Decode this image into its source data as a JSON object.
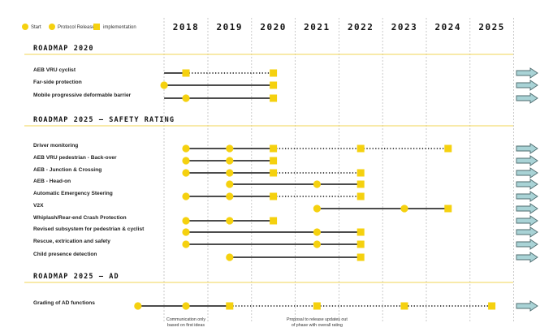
{
  "legend": {
    "start": "Start",
    "protocol_release": "Protocol Release",
    "implementation": "implementation"
  },
  "years": [
    "2018",
    "2019",
    "2020",
    "2021",
    "2022",
    "2023",
    "2024",
    "2025"
  ],
  "colors": {
    "marker": "#f5d10f",
    "section_rule": "#f2d455",
    "arrow_fill": "#a9d3d6",
    "arrow_stroke": "#4e6b6e",
    "grid": "#bdbdbd",
    "line": "#111111"
  },
  "sections": [
    {
      "title": "ROADMAP 2020",
      "rows": [
        {
          "label": "AEB VRU cyclist",
          "solid": [
            [
              2017.5,
              2018.0
            ]
          ],
          "dotted": [
            [
              2018.0,
              2020.0
            ]
          ],
          "circles": [],
          "squares": [
            2018.0,
            2020.0
          ]
        },
        {
          "label": "Far-side protection",
          "solid": [
            [
              2017.5,
              2020.0
            ]
          ],
          "dotted": [],
          "circles": [
            2017.5
          ],
          "squares": [
            2020.0
          ]
        },
        {
          "label": "Mobile progressive deformable barrier",
          "solid": [
            [
              2017.5,
              2020.0
            ]
          ],
          "dotted": [],
          "circles": [
            2018.0
          ],
          "squares": [
            2020.0
          ]
        }
      ]
    },
    {
      "title": "ROADMAP 2025 — SAFETY RATING",
      "rows": [
        {
          "label": "Driver monitoring",
          "solid": [
            [
              2018.0,
              2020.0
            ]
          ],
          "dotted": [
            [
              2020.0,
              2022.0
            ],
            [
              2022.0,
              2024.0
            ]
          ],
          "circles": [
            2018.0,
            2019.0
          ],
          "squares": [
            2020.0,
            2022.0,
            2024.0
          ]
        },
        {
          "label": "AEB VRU pedestrian - Back-over",
          "solid": [
            [
              2018.0,
              2020.0
            ]
          ],
          "dotted": [],
          "circles": [
            2018.0,
            2019.0
          ],
          "squares": [
            2020.0
          ]
        },
        {
          "label": "AEB - Junction & Crossing",
          "solid": [
            [
              2018.0,
              2020.0
            ]
          ],
          "dotted": [
            [
              2020.0,
              2022.0
            ]
          ],
          "circles": [
            2018.0,
            2019.0
          ],
          "squares": [
            2020.0,
            2022.0
          ]
        },
        {
          "label": "AEB - Head-on",
          "solid": [
            [
              2019.0,
              2022.0
            ]
          ],
          "dotted": [],
          "circles": [
            2019.0,
            2021.0
          ],
          "squares": [
            2022.0
          ]
        },
        {
          "label": "Automatic Emergency Steering",
          "solid": [
            [
              2018.0,
              2020.0
            ]
          ],
          "dotted": [
            [
              2020.0,
              2022.0
            ]
          ],
          "circles": [
            2018.0,
            2019.0
          ],
          "squares": [
            2020.0,
            2022.0
          ]
        },
        {
          "label": "V2X",
          "solid": [
            [
              2021.0,
              2024.0
            ]
          ],
          "dotted": [],
          "circles": [
            2021.0,
            2023.0
          ],
          "squares": [
            2024.0
          ]
        },
        {
          "label": "Whiplash/Rear-end Crash Protection",
          "solid": [
            [
              2018.0,
              2020.0
            ]
          ],
          "dotted": [],
          "circles": [
            2018.0,
            2019.0
          ],
          "squares": [
            2020.0
          ]
        },
        {
          "label": "Revised subsystem for pedestrian & cyclist",
          "solid": [
            [
              2018.0,
              2022.0
            ]
          ],
          "dotted": [],
          "circles": [
            2018.0,
            2021.0
          ],
          "squares": [
            2022.0
          ]
        },
        {
          "label": "Rescue, extrication and safety",
          "solid": [
            [
              2018.0,
              2022.0
            ]
          ],
          "dotted": [],
          "circles": [
            2018.0,
            2021.0
          ],
          "squares": [
            2022.0
          ]
        },
        {
          "label": "Child presence detection",
          "solid": [
            [
              2019.0,
              2022.0
            ]
          ],
          "dotted": [],
          "circles": [
            2019.0
          ],
          "squares": [
            2022.0
          ]
        }
      ]
    },
    {
      "title": "ROADMAP 2025 — AD",
      "rows": [
        {
          "label": "Grading of AD functions",
          "solid": [
            [
              2016.9,
              2019.0
            ]
          ],
          "dotted": [
            [
              2019.0,
              2025.0
            ]
          ],
          "circles": [
            2016.9,
            2018.0
          ],
          "squares": [
            2019.0,
            2021.0,
            2023.0,
            2025.0
          ]
        }
      ]
    }
  ],
  "notes": [
    {
      "year": 2018.0,
      "lines": [
        "Communication only",
        "based on first ideas"
      ]
    },
    {
      "year": 2021.0,
      "lines": [
        "Proposal to release updates out",
        "of phase with overall rating"
      ]
    }
  ]
}
